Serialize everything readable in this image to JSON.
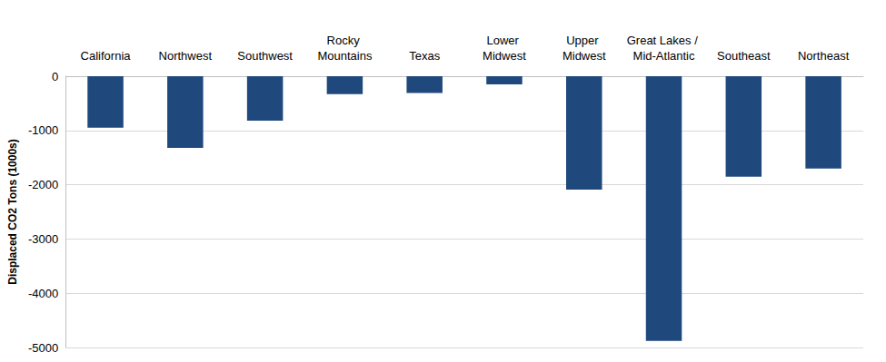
{
  "chart_data": {
    "type": "bar",
    "y_label": "Displaced CO2 Tons (1000s)",
    "categories": [
      "California",
      "Northwest",
      "Southwest",
      "Rocky Mountains",
      "Texas",
      "Lower Midwest",
      "Upper Midwest",
      "Great Lakes / Mid-Atlantic",
      "Southeast",
      "Northeast"
    ],
    "values": [
      -950,
      -1320,
      -820,
      -330,
      -310,
      -150,
      -2090,
      -4880,
      -1850,
      -1700
    ],
    "color": "#1f497d",
    "ylim": [
      -5000,
      0
    ],
    "yticks": [
      -5000,
      -4000,
      -3000,
      -2000,
      -1000,
      0
    ],
    "grid": true
  }
}
